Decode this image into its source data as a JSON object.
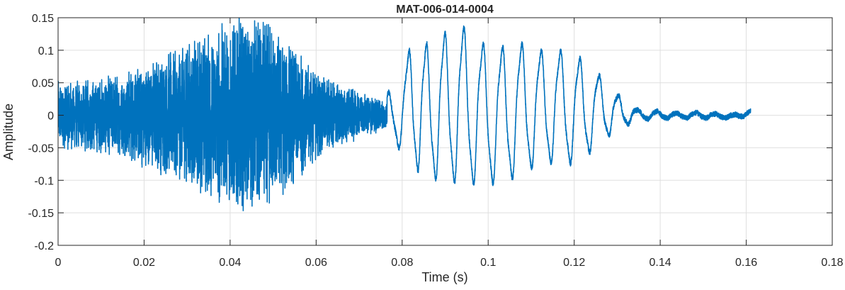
{
  "chart_data": {
    "type": "line",
    "title": "MAT-006-014-0004",
    "xlabel": "Time (s)",
    "ylabel": "Amplitude",
    "xlim": [
      0,
      0.18
    ],
    "ylim": [
      -0.2,
      0.15
    ],
    "x_ticks": [
      0,
      0.02,
      0.04,
      0.06,
      0.08,
      0.1,
      0.12,
      0.14,
      0.16,
      0.18
    ],
    "x_tick_labels": [
      "0",
      "0.02",
      "0.04",
      "0.06",
      "0.08",
      "0.1",
      "0.12",
      "0.14",
      "0.16",
      "0.18"
    ],
    "y_ticks": [
      -0.2,
      -0.15,
      -0.1,
      -0.05,
      0,
      0.05,
      0.1,
      0.15
    ],
    "y_tick_labels": [
      "-0.2",
      "-0.15",
      "-0.1",
      "-0.05",
      "0",
      "0.05",
      "0.1",
      "0.15"
    ],
    "grid": true,
    "box": true,
    "series": [
      {
        "color": "#0072BD",
        "description": "Audio waveform: noisy high-frequency burst from 0 to ~0.076 s peaking near 0.04 s, then periodic oscillation (~4.7 ms period) decaying to small amplitude, ending at ~0.161 s",
        "envelope_x": [
          0,
          0.005,
          0.01,
          0.015,
          0.02,
          0.025,
          0.03,
          0.035,
          0.04,
          0.045,
          0.05,
          0.055,
          0.06,
          0.065,
          0.07,
          0.075,
          0.0765
        ],
        "envelope_y": [
          0.045,
          0.045,
          0.05,
          0.055,
          0.07,
          0.08,
          0.095,
          0.11,
          0.13,
          0.13,
          0.12,
          0.09,
          0.06,
          0.045,
          0.03,
          0.022,
          0.02
        ],
        "peaks_x": [
          0.0765,
          0.0815,
          0.0855,
          0.0898,
          0.0942,
          0.0987,
          0.1032,
          0.1077,
          0.1122,
          0.1167,
          0.1212,
          0.1257,
          0.1302,
          0.1347,
          0.1392,
          0.1437,
          0.1482,
          0.1527,
          0.1572,
          0.161
        ],
        "peaks_y": [
          0.03,
          0.095,
          0.105,
          0.12,
          0.13,
          0.105,
          0.1,
          0.105,
          0.095,
          0.095,
          0.085,
          0.06,
          0.03,
          0.008,
          0.006,
          0.003,
          0.004,
          0.002,
          0.001,
          0.006
        ],
        "troughs_y": [
          -0.02,
          -0.07,
          -0.09,
          -0.095,
          -0.1,
          -0.1,
          -0.1,
          -0.085,
          -0.07,
          -0.07,
          -0.07,
          -0.04,
          -0.02,
          -0.006,
          -0.005,
          -0.004,
          -0.004,
          -0.004,
          -0.004,
          0.0
        ],
        "t_end": 0.161
      }
    ]
  }
}
